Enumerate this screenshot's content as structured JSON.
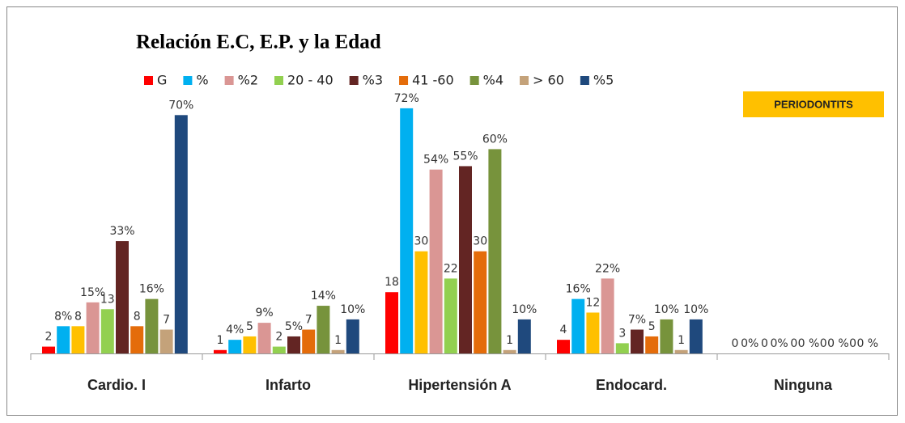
{
  "chart_data": {
    "type": "bar",
    "title": "Relación E.C, E.P. y la Edad",
    "annotation": "PERIODONTITS",
    "categories": [
      "Cardio. I",
      "Infarto",
      "Hipertensión A",
      "Endocard.",
      "Ninguna"
    ],
    "series": [
      {
        "name": "G",
        "color": "#ff0000",
        "values": [
          2,
          1,
          18,
          4,
          0
        ],
        "value_labels": [
          "2",
          "1",
          "18",
          "4",
          "0"
        ]
      },
      {
        "name": "%",
        "color": "#00b0f0",
        "values": [
          8,
          4,
          72,
          16,
          0
        ],
        "value_labels": [
          "8%",
          "4%",
          "72%",
          "16%",
          "0%"
        ]
      },
      {
        "color": "#ffc000",
        "values": [
          8,
          5,
          30,
          12,
          0
        ],
        "value_labels": [
          "8",
          "5",
          "30",
          "12",
          "0"
        ]
      },
      {
        "name": "%2",
        "color": "#da9694",
        "values": [
          15,
          9,
          54,
          22,
          0
        ],
        "value_labels": [
          "15%",
          "9%",
          "54%",
          "22%",
          "0%"
        ]
      },
      {
        "name": "20 - 40",
        "color": "#92d050",
        "values": [
          13,
          2,
          22,
          3,
          0
        ],
        "value_labels": [
          "13",
          "2",
          "22",
          "3",
          "0"
        ]
      },
      {
        "name": "%3",
        "color": "#632523",
        "values": [
          33,
          5,
          55,
          7,
          0
        ],
        "value_labels": [
          "33%",
          "5%",
          "55%",
          "7%",
          "0 %"
        ]
      },
      {
        "name": "41 -60",
        "color": "#e46c0a",
        "values": [
          8,
          7,
          30,
          5,
          0
        ],
        "value_labels": [
          "8",
          "7",
          "30",
          "5",
          "0"
        ]
      },
      {
        "name": "%4",
        "color": "#77933c",
        "values": [
          16,
          14,
          60,
          10,
          0
        ],
        "value_labels": [
          "16%",
          "14%",
          "60%",
          "10%",
          "0 %"
        ]
      },
      {
        "name": "> 60",
        "color": "#c4a27a",
        "values": [
          7,
          1,
          1,
          1,
          0
        ],
        "value_labels": [
          "7",
          "1",
          "1",
          "1",
          "0"
        ]
      },
      {
        "name": "%5",
        "color": "#1f497d",
        "values": [
          70,
          10,
          10,
          10,
          0
        ],
        "value_labels": [
          "70%",
          "10%",
          "10%",
          "10%",
          "0 %"
        ]
      }
    ]
  }
}
